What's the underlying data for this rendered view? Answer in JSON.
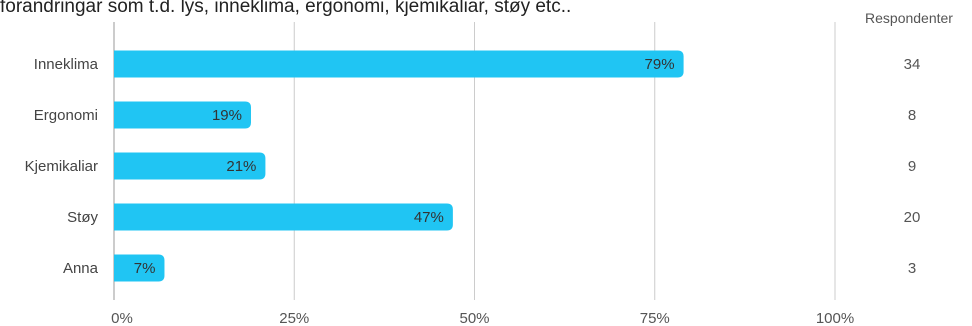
{
  "question": {
    "text": "forandringar som t.d. lys, inneklima, ergonomi, kjemikaliar, støy etc.."
  },
  "respondents_header": "Respondenter",
  "colors": {
    "bar": "#20c5f3",
    "grid": "#cccccc",
    "axis": "#999999"
  },
  "chart_data": {
    "type": "bar",
    "orientation": "horizontal",
    "categories": [
      "Inneklima",
      "Ergonomi",
      "Kjemikaliar",
      "Støy",
      "Anna"
    ],
    "values": [
      79,
      19,
      21,
      47,
      7
    ],
    "value_labels": [
      "79%",
      "19%",
      "21%",
      "47%",
      "7%"
    ],
    "respondents": [
      "34",
      "8",
      "9",
      "20",
      "3"
    ],
    "xlim": [
      0,
      100
    ],
    "x_ticks": [
      0,
      25,
      50,
      75,
      100
    ],
    "x_tick_labels": [
      "0%",
      "25%",
      "50%",
      "75%",
      "100%"
    ],
    "grid": true,
    "legend": "none"
  }
}
